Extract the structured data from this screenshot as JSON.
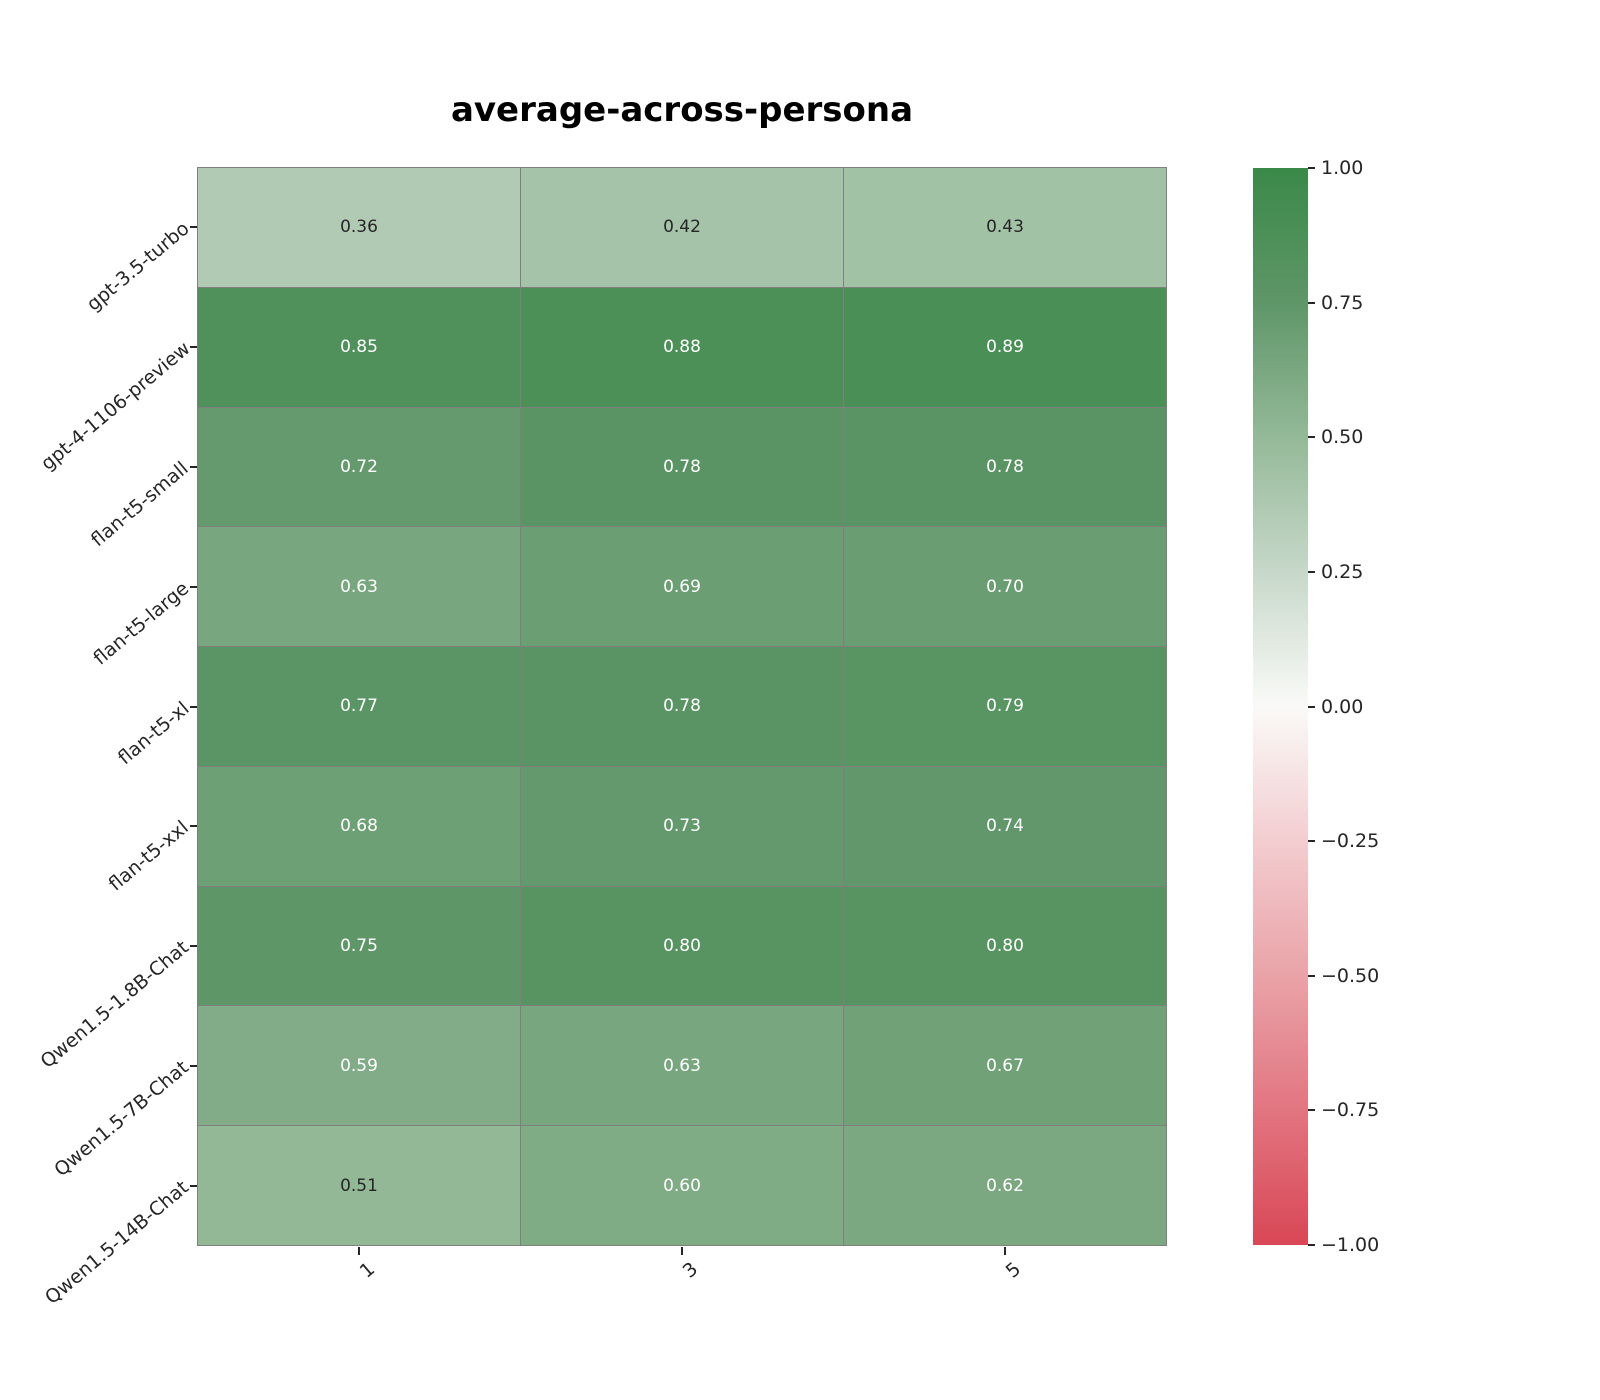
{
  "chart_data": {
    "type": "heatmap",
    "title": "average-across-persona",
    "rows": [
      "gpt-3.5-turbo",
      "gpt-4-1106-preview",
      "flan-t5-small",
      "flan-t5-large",
      "flan-t5-xl",
      "flan-t5-xxl",
      "Qwen1.5-1.8B-Chat",
      "Qwen1.5-7B-Chat",
      "Qwen1.5-14B-Chat"
    ],
    "columns": [
      "1",
      "3",
      "5"
    ],
    "values": [
      [
        0.36,
        0.42,
        0.43
      ],
      [
        0.85,
        0.88,
        0.89
      ],
      [
        0.72,
        0.78,
        0.78
      ],
      [
        0.63,
        0.69,
        0.7
      ],
      [
        0.77,
        0.78,
        0.79
      ],
      [
        0.68,
        0.73,
        0.74
      ],
      [
        0.75,
        0.8,
        0.8
      ],
      [
        0.59,
        0.63,
        0.67
      ],
      [
        0.51,
        0.6,
        0.62
      ]
    ],
    "vmin": -1.0,
    "vmax": 1.0,
    "colorbar_ticks": [
      {
        "v": 1.0,
        "label": "1.00"
      },
      {
        "v": 0.75,
        "label": "0.75"
      },
      {
        "v": 0.5,
        "label": "0.50"
      },
      {
        "v": 0.25,
        "label": "0.25"
      },
      {
        "v": 0.0,
        "label": "0.00"
      },
      {
        "v": -0.25,
        "label": "−0.25"
      },
      {
        "v": -0.5,
        "label": "−0.50"
      },
      {
        "v": -0.75,
        "label": "−0.75"
      },
      {
        "v": -1.0,
        "label": "−1.00"
      }
    ],
    "colormap_stops": [
      {
        "v": -1.0,
        "color": "#d94756"
      },
      {
        "v": -0.75,
        "color": "#e27580"
      },
      {
        "v": -0.5,
        "color": "#e9a3a8"
      },
      {
        "v": -0.25,
        "color": "#f3cdd0"
      },
      {
        "v": 0.0,
        "color": "#fafaf8"
      },
      {
        "v": 0.25,
        "color": "#c7d8c9"
      },
      {
        "v": 0.5,
        "color": "#94b998"
      },
      {
        "v": 0.75,
        "color": "#5f9668"
      },
      {
        "v": 1.0,
        "color": "#3a8948"
      }
    ],
    "grid_line_color": "#7f7f7f",
    "annotation_dark_color": "#262626",
    "annotation_light_color": "#ffffff",
    "annotation_dark_text_below": 0.55,
    "legend_position": "right",
    "xlabel": "",
    "ylabel": ""
  }
}
